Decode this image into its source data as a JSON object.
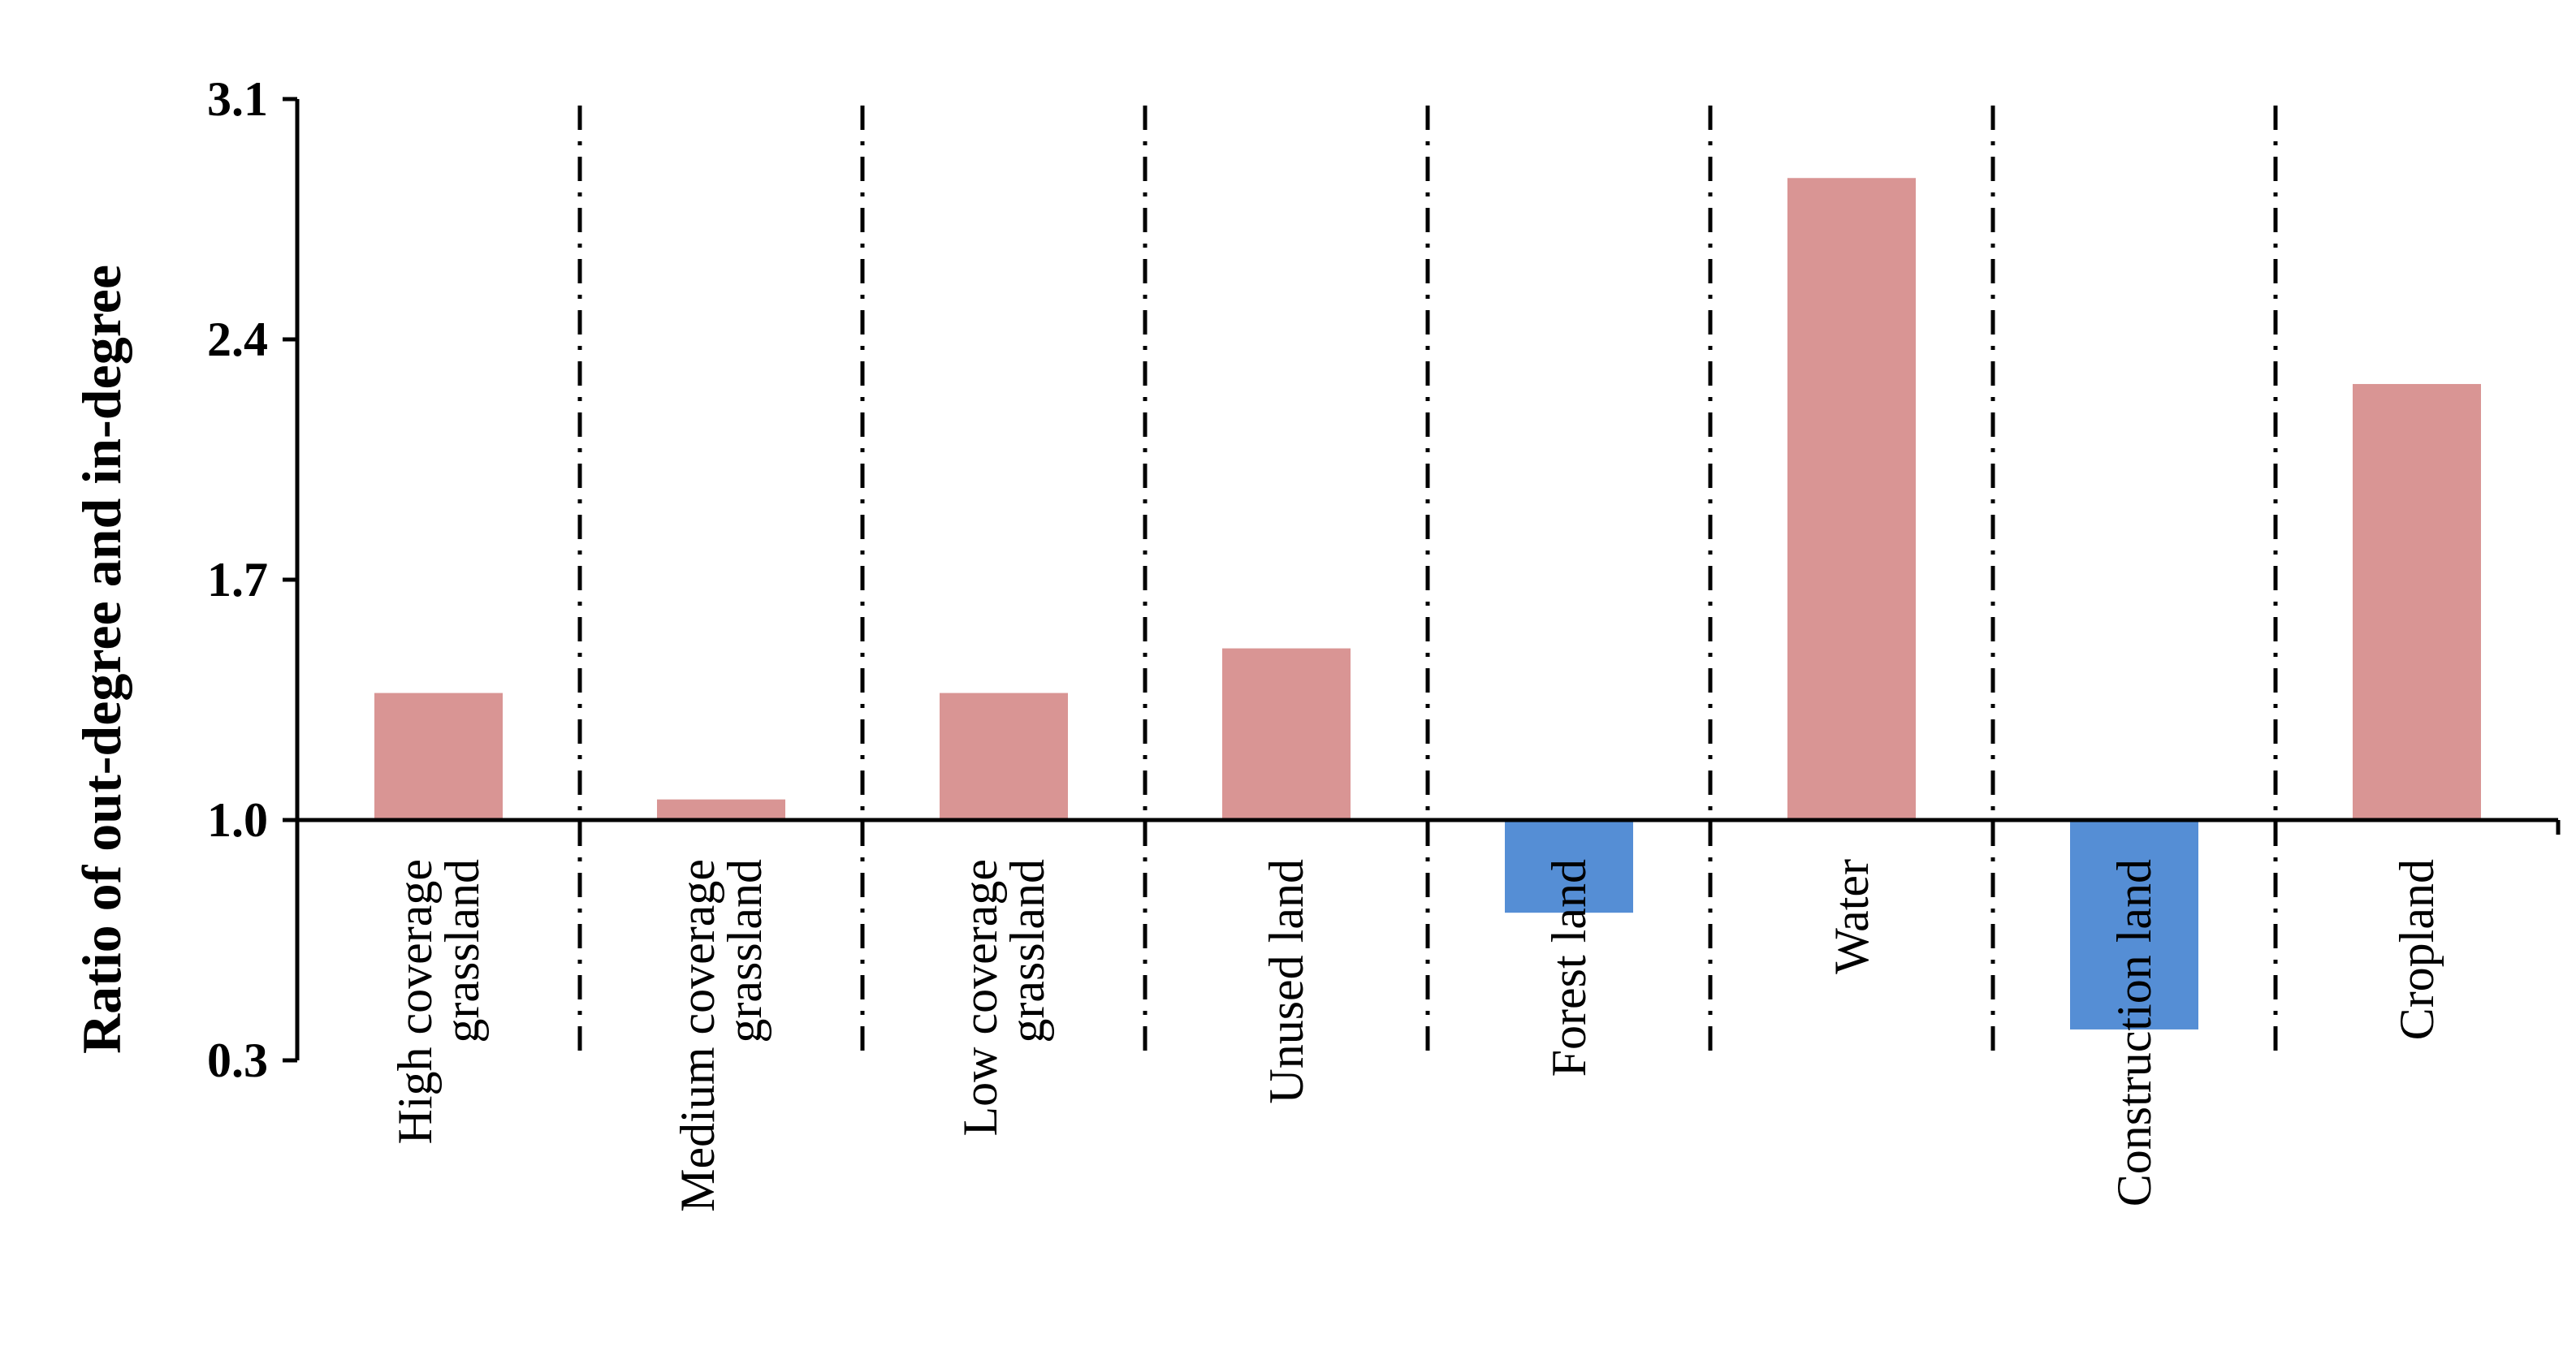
{
  "chart_data": {
    "type": "bar",
    "ylabel": "Ratio of out-degree and in-degree",
    "ylim": [
      0.3,
      3.1
    ],
    "baseline": 1.0,
    "yticks": [
      "3.1",
      "2.4",
      "1.7",
      "1.0",
      "0.3"
    ],
    "categories": [
      [
        "High coverage",
        "grassland"
      ],
      [
        "Medium coverage",
        "grassland"
      ],
      [
        "Low coverage",
        "grassland"
      ],
      [
        "Unused land"
      ],
      [
        "Forest land"
      ],
      [
        "Water"
      ],
      [
        "Construction land"
      ],
      [
        "Cropland"
      ]
    ],
    "values": [
      1.37,
      1.06,
      1.37,
      1.5,
      0.73,
      2.87,
      0.39,
      2.27
    ],
    "colors": {
      "above": "#d99594",
      "below": "#558ed5"
    },
    "grid": false,
    "legend": "none"
  }
}
